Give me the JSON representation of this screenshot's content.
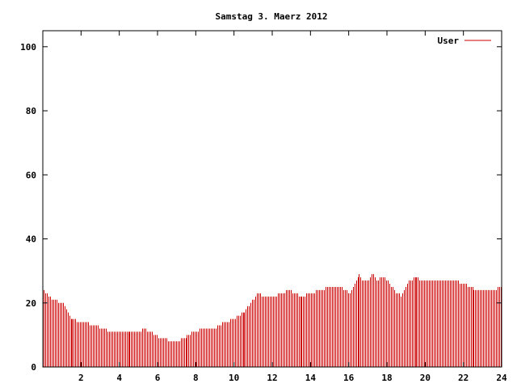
{
  "chart_data": {
    "type": "bar",
    "title": "Samstag 3. Maerz 2012",
    "xlabel": "",
    "ylabel": "",
    "xlim": [
      0,
      24
    ],
    "ylim": [
      0,
      105
    ],
    "x_ticks": [
      "2",
      "4",
      "6",
      "8",
      "10",
      "12",
      "14",
      "16",
      "18",
      "20",
      "22",
      "24"
    ],
    "y_ticks": [
      "0",
      "20",
      "40",
      "60",
      "80",
      "100"
    ],
    "grid": false,
    "legend": "top-right",
    "series": [
      {
        "name": "User",
        "color": "#cc0000",
        "points": [
          [
            0.0,
            24
          ],
          [
            0.5,
            21
          ],
          [
            1.0,
            20
          ],
          [
            1.25,
            17
          ],
          [
            1.5,
            15
          ],
          [
            2.0,
            14
          ],
          [
            2.75,
            13
          ],
          [
            3.5,
            11
          ],
          [
            4.0,
            11
          ],
          [
            4.5,
            11
          ],
          [
            5.0,
            11
          ],
          [
            5.3,
            12
          ],
          [
            5.9,
            10
          ],
          [
            6.1,
            9
          ],
          [
            6.9,
            8
          ],
          [
            7.4,
            9
          ],
          [
            7.9,
            11
          ],
          [
            8.5,
            12
          ],
          [
            9.0,
            12
          ],
          [
            9.5,
            14
          ],
          [
            10.0,
            15
          ],
          [
            10.5,
            17
          ],
          [
            11.0,
            21
          ],
          [
            11.25,
            23
          ],
          [
            11.5,
            22
          ],
          [
            12.0,
            22
          ],
          [
            12.5,
            23
          ],
          [
            12.8,
            24
          ],
          [
            13.5,
            22
          ],
          [
            14.0,
            23
          ],
          [
            14.5,
            24
          ],
          [
            15.0,
            25
          ],
          [
            15.5,
            25
          ],
          [
            16.0,
            23
          ],
          [
            16.3,
            26
          ],
          [
            16.5,
            29
          ],
          [
            16.75,
            27
          ],
          [
            17.0,
            27
          ],
          [
            17.25,
            29
          ],
          [
            17.5,
            27
          ],
          [
            17.75,
            28
          ],
          [
            18.0,
            27
          ],
          [
            18.5,
            23
          ],
          [
            18.75,
            22
          ],
          [
            19.0,
            26
          ],
          [
            19.5,
            28
          ],
          [
            19.75,
            27
          ],
          [
            20.0,
            27
          ],
          [
            20.5,
            27
          ],
          [
            21.0,
            27
          ],
          [
            21.5,
            27
          ],
          [
            22.0,
            26
          ],
          [
            22.25,
            25
          ],
          [
            22.75,
            24
          ],
          [
            23.0,
            24
          ],
          [
            23.5,
            24
          ],
          [
            24.0,
            25
          ]
        ]
      }
    ]
  }
}
